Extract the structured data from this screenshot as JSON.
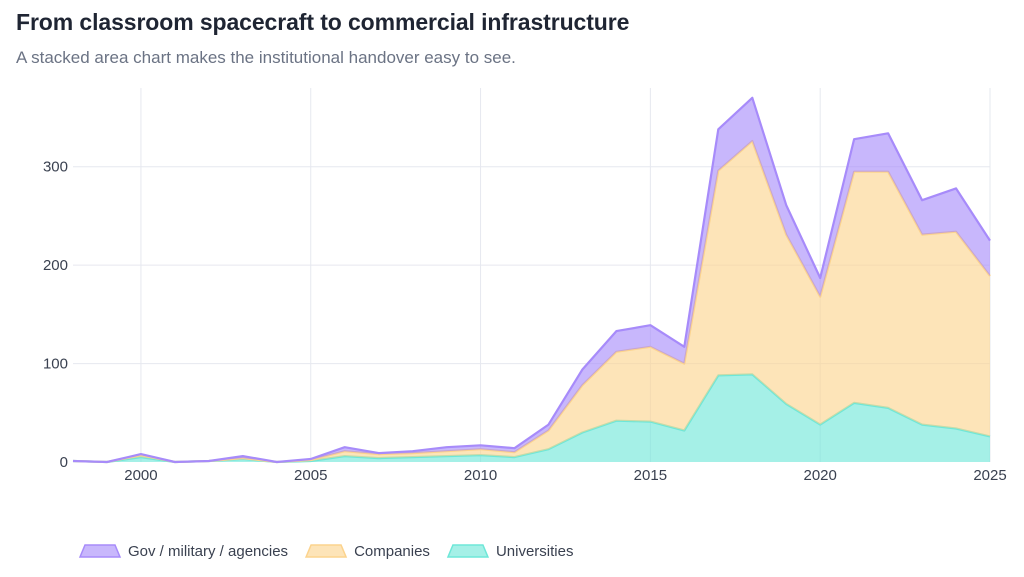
{
  "title": "From classroom spacecraft to commercial infrastructure",
  "subtitle": "A stacked area chart makes the institutional handover easy to see.",
  "chart_data": {
    "type": "area",
    "stacked": true,
    "x": [
      1998,
      1999,
      2000,
      2001,
      2002,
      2003,
      2004,
      2005,
      2006,
      2007,
      2008,
      2009,
      2010,
      2011,
      2012,
      2013,
      2014,
      2015,
      2016,
      2017,
      2018,
      2019,
      2020,
      2021,
      2022,
      2023,
      2024,
      2025
    ],
    "xlim": [
      1998,
      2025
    ],
    "ylim": [
      0,
      380
    ],
    "xticks": [
      2000,
      2005,
      2010,
      2015,
      2020,
      2025
    ],
    "yticks": [
      0,
      100,
      200,
      300
    ],
    "grid": true,
    "legend_position": "bottom-left",
    "series": [
      {
        "name": "Universities",
        "color": "#6ee7d8",
        "values": [
          1,
          0,
          5,
          0,
          1,
          3,
          0,
          1,
          6,
          4,
          5,
          6,
          7,
          5,
          13,
          30,
          42,
          41,
          32,
          88,
          89,
          59,
          38,
          60,
          55,
          38,
          34,
          26
        ]
      },
      {
        "name": "Companies",
        "color": "#fcd38d",
        "values": [
          0,
          0,
          2,
          0,
          0,
          1,
          0,
          1,
          5,
          4,
          4,
          5,
          6,
          5,
          19,
          48,
          70,
          76,
          68,
          208,
          237,
          172,
          130,
          235,
          240,
          193,
          200,
          163
        ]
      },
      {
        "name": "Gov / military / agencies",
        "color": "#a78bfa",
        "values": [
          0,
          0,
          1,
          0,
          0,
          2,
          0,
          1,
          4,
          1,
          2,
          4,
          4,
          4,
          6,
          16,
          21,
          22,
          17,
          42,
          44,
          30,
          19,
          33,
          39,
          35,
          44,
          36
        ]
      }
    ],
    "legend": [
      "Gov / military / agencies",
      "Companies",
      "Universities"
    ]
  }
}
